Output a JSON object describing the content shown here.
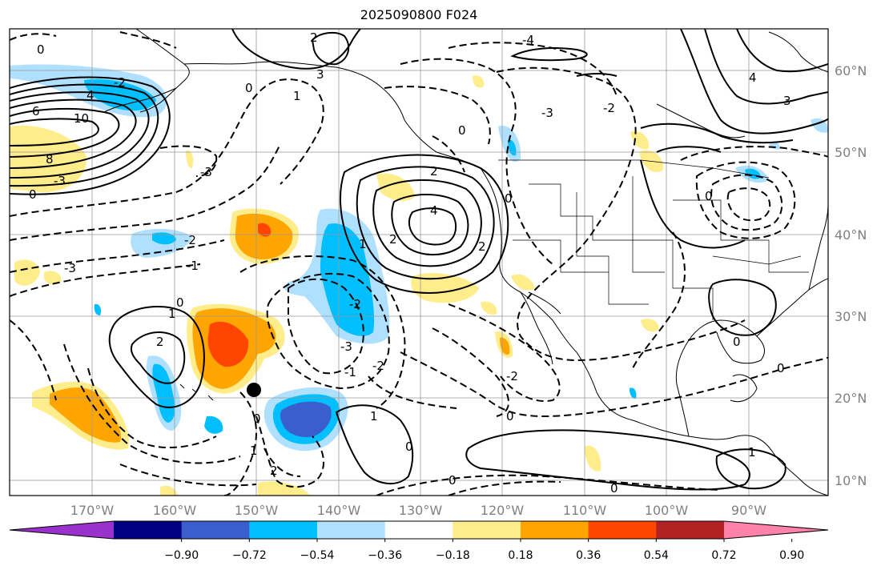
{
  "title": "2025090800 F024",
  "map": {
    "lon_ticks": [
      "170°W",
      "160°W",
      "150°W",
      "140°W",
      "130°W",
      "120°W",
      "110°W",
      "100°W",
      "90°W"
    ],
    "lat_ticks": [
      "60°N",
      "50°N",
      "40°N",
      "30°N",
      "20°N",
      "10°N"
    ],
    "marker": "black-dot"
  },
  "colorbar": {
    "labels": [
      "−0.90",
      "−0.72",
      "−0.54",
      "−0.36",
      "−0.18",
      "0.18",
      "0.36",
      "0.54",
      "0.72",
      "0.90"
    ],
    "colors": [
      "#9932cc",
      "#000080",
      "#3a5fcd",
      "#00bfff",
      "#b0e0ff",
      "#ffffff",
      "#ffec8b",
      "#ffa500",
      "#ff4500",
      "#b22222",
      "#ff82ab"
    ]
  },
  "contour_labels": [
    "0",
    "2",
    "4",
    "6",
    "8",
    "10",
    "-1",
    "-2",
    "-3",
    "-4",
    "1",
    "2",
    "4"
  ]
}
